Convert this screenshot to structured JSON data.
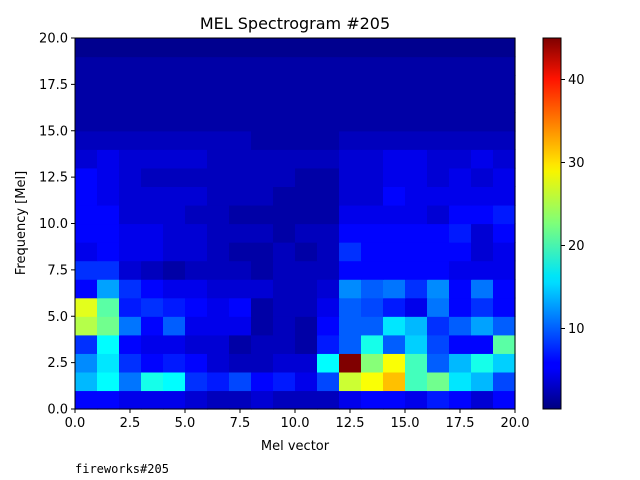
{
  "chart_data": {
    "type": "heatmap",
    "title": "MEL Spectrogram #205",
    "xlabel": "Mel vector",
    "ylabel": "Frequency [Mel]",
    "xlim": [
      0.0,
      20.0
    ],
    "ylim": [
      0.0,
      20.0
    ],
    "xticks": [
      "0.0",
      "2.5",
      "5.0",
      "7.5",
      "10.0",
      "12.5",
      "15.0",
      "17.5",
      "20.0"
    ],
    "yticks": [
      "0.0",
      "2.5",
      "5.0",
      "7.5",
      "10.0",
      "12.5",
      "15.0",
      "17.5",
      "20.0"
    ],
    "colormap": "jet",
    "colorbar": {
      "min": 0.3,
      "max": 45,
      "ticks": [
        "10",
        "20",
        "30",
        "40"
      ]
    },
    "rows_bottom_to_top": [
      [
        6,
        6,
        5,
        5,
        5,
        4,
        3,
        3,
        4,
        3,
        3,
        3,
        5,
        6,
        6,
        5,
        7,
        6,
        4,
        6
      ],
      [
        14,
        17,
        11,
        18,
        17,
        8,
        7,
        9,
        6,
        7,
        5,
        9,
        26,
        28,
        31,
        20,
        22,
        16,
        14,
        9
      ],
      [
        12,
        16,
        8,
        6,
        7,
        6,
        4,
        3,
        3,
        4,
        4,
        17,
        45,
        23,
        28,
        20,
        10,
        14,
        18,
        15
      ],
      [
        8,
        17,
        6,
        5,
        5,
        4,
        4,
        2,
        3,
        3,
        2,
        7,
        10,
        18,
        10,
        15,
        9,
        6,
        6,
        21
      ],
      [
        25,
        22,
        11,
        6,
        10,
        5,
        5,
        5,
        2,
        3,
        2,
        6,
        10,
        10,
        16,
        14,
        8,
        10,
        13,
        10
      ],
      [
        27,
        21,
        7,
        8,
        7,
        6,
        5,
        6,
        2,
        3,
        3,
        5,
        10,
        9,
        7,
        5,
        11,
        6,
        8,
        6
      ],
      [
        6,
        13,
        8,
        6,
        5,
        5,
        4,
        4,
        4,
        3,
        3,
        4,
        12,
        10,
        11,
        8,
        12,
        6,
        11,
        6
      ],
      [
        8,
        8,
        4,
        3,
        2,
        3,
        3,
        3,
        2,
        3,
        3,
        3,
        6,
        6,
        6,
        6,
        6,
        5,
        5,
        5
      ],
      [
        5,
        6,
        5,
        5,
        4,
        4,
        3,
        2,
        2,
        3,
        2,
        3,
        8,
        6,
        6,
        6,
        6,
        6,
        4,
        5
      ],
      [
        6,
        6,
        5,
        5,
        4,
        4,
        3,
        3,
        3,
        2,
        3,
        3,
        6,
        6,
        6,
        6,
        6,
        7,
        4,
        6
      ],
      [
        6,
        6,
        4,
        4,
        4,
        3,
        3,
        2,
        2,
        2,
        2,
        2,
        5,
        5,
        5,
        5,
        4,
        6,
        6,
        7
      ],
      [
        6,
        5,
        4,
        4,
        4,
        4,
        3,
        3,
        3,
        2,
        2,
        2,
        4,
        4,
        6,
        5,
        5,
        5,
        5,
        5
      ],
      [
        6,
        5,
        4,
        3,
        3,
        3,
        3,
        3,
        3,
        3,
        2,
        2,
        4,
        4,
        5,
        5,
        4,
        5,
        4,
        5
      ],
      [
        4,
        5,
        4,
        4,
        4,
        4,
        3,
        3,
        3,
        3,
        3,
        3,
        4,
        4,
        5,
        5,
        4,
        4,
        5,
        4
      ],
      [
        3,
        3,
        3,
        3,
        3,
        3,
        3,
        3,
        2,
        2,
        2,
        2,
        3,
        3,
        3,
        3,
        3,
        3,
        3,
        3
      ],
      [
        2,
        2,
        2,
        2,
        2,
        2,
        2,
        2,
        2,
        2,
        2,
        2,
        2,
        2,
        2,
        2,
        2,
        2,
        2,
        2
      ],
      [
        2,
        2,
        2,
        2,
        2,
        2,
        2,
        2,
        2,
        2,
        2,
        2,
        2,
        2,
        2,
        2,
        2,
        2,
        2,
        2
      ],
      [
        2,
        2,
        2,
        2,
        2,
        2,
        2,
        2,
        2,
        2,
        2,
        2,
        2,
        2,
        2,
        2,
        2,
        2,
        2,
        2
      ],
      [
        2,
        2,
        2,
        2,
        2,
        2,
        2,
        2,
        2,
        2,
        2,
        2,
        2,
        2,
        2,
        2,
        2,
        2,
        2,
        2
      ],
      [
        1,
        1,
        1,
        1,
        1,
        1,
        1,
        1,
        1,
        1,
        1,
        1,
        1,
        1,
        1,
        1,
        1,
        1,
        1,
        1
      ]
    ]
  },
  "caption": "fireworks#205"
}
